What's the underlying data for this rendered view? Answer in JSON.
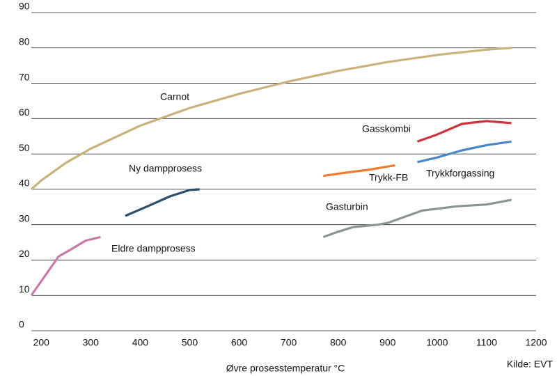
{
  "chart_data": {
    "type": "line",
    "x_label": "Øvre prosesstemperatur °C",
    "source": "Kilde: EVT",
    "xlim": [
      180,
      1200
    ],
    "xticks": [
      200,
      300,
      400,
      500,
      600,
      700,
      800,
      900,
      1000,
      1100,
      1200
    ],
    "ylim": [
      0,
      90
    ],
    "yticks": [
      0,
      10,
      20,
      30,
      40,
      50,
      60,
      70,
      80,
      90
    ],
    "grid": true,
    "series": [
      {
        "name": "Carnot",
        "color": "#c9b27b",
        "x": [
          180,
          200,
          250,
          300,
          400,
          500,
          600,
          700,
          800,
          900,
          1000,
          1100,
          1150
        ],
        "values": [
          40,
          42.5,
          47.5,
          51.5,
          58,
          63,
          67,
          70.5,
          73.5,
          76,
          78,
          79.5,
          80
        ]
      },
      {
        "name": "Eldre dampprosess",
        "color": "#c97aa9",
        "x": [
          180,
          235,
          260,
          290,
          320
        ],
        "values": [
          10,
          21,
          23,
          25.5,
          26.5
        ]
      },
      {
        "name": "Ny dampprosess",
        "color": "#2a4f6e",
        "x": [
          370,
          420,
          460,
          500,
          520
        ],
        "values": [
          32.5,
          35.5,
          38,
          39.8,
          40
        ]
      },
      {
        "name": "Gasturbin",
        "color": "#8a9591",
        "x": [
          770,
          800,
          830,
          880,
          900,
          930,
          970,
          1000,
          1040,
          1100,
          1150
        ],
        "values": [
          26.5,
          28,
          29.3,
          30,
          30.5,
          32,
          34,
          34.5,
          35.2,
          35.7,
          37
        ]
      },
      {
        "name": "Trykk-FB",
        "color": "#ee7d30",
        "x": [
          770,
          820,
          860,
          915
        ],
        "values": [
          43.8,
          44.8,
          45.5,
          46.8
        ]
      },
      {
        "name": "Gasskombi",
        "color": "#d0323c",
        "x": [
          960,
          1000,
          1050,
          1100,
          1150
        ],
        "values": [
          53.5,
          55.5,
          58.5,
          59.3,
          58.7
        ]
      },
      {
        "name": "Trykkforgassing",
        "color": "#4a86c6",
        "x": [
          960,
          1000,
          1050,
          1100,
          1150
        ],
        "values": [
          47.7,
          49,
          51,
          52.5,
          53.5
        ]
      }
    ]
  }
}
